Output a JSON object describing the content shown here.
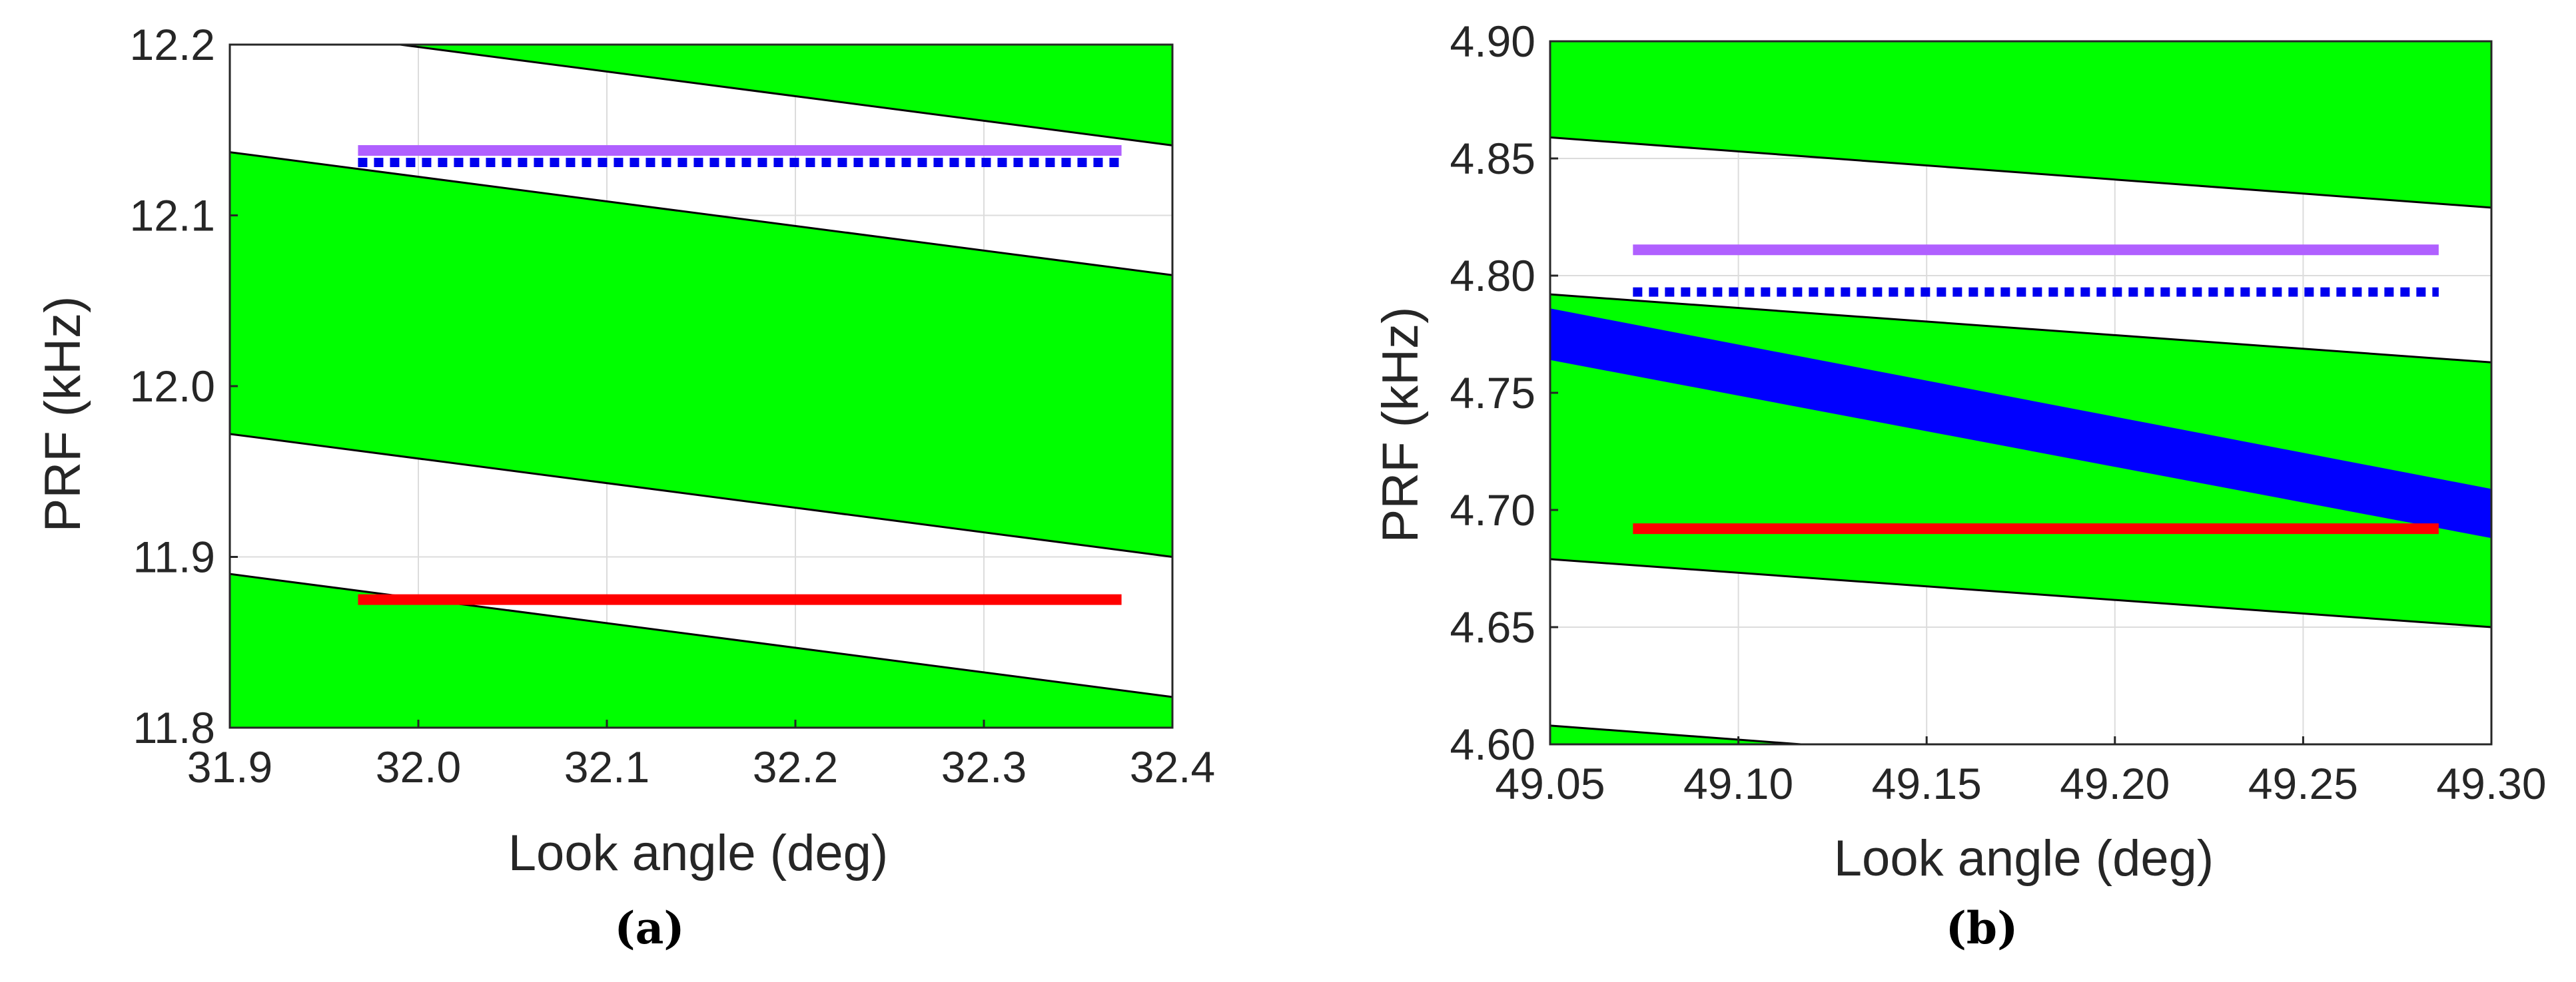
{
  "colors": {
    "feasible": "#00ff00",
    "nadir_band": "#0000ff",
    "purple_line": "#b060ff",
    "blue_dotted": "#0000ee",
    "red_line": "#ff0000",
    "boundary": "#000000",
    "grid": "#dcdcdc"
  },
  "chart_data": [
    {
      "id": "a",
      "type": "area",
      "caption": "(a)",
      "xlabel": "Look angle (deg)",
      "ylabel": "PRF (kHz)",
      "xlim": [
        31.9,
        32.4
      ],
      "ylim": [
        11.8,
        12.2
      ],
      "xticks": [
        31.9,
        32.0,
        32.1,
        32.2,
        32.3,
        32.4
      ],
      "xtick_labels": [
        "31.9",
        "32.0",
        "32.1",
        "32.2",
        "32.3",
        "32.4"
      ],
      "yticks": [
        11.8,
        11.9,
        12.0,
        12.1,
        12.2
      ],
      "ytick_labels": [
        "11.8",
        "11.9",
        "12.0",
        "12.1",
        "12.2"
      ],
      "grid": true,
      "green_bands": [
        {
          "lower": [
            [
              31.9,
              11.7
            ],
            [
              32.4,
              11.7
            ]
          ],
          "upper": [
            [
              31.9,
              11.89
            ],
            [
              32.4,
              11.818
            ]
          ]
        },
        {
          "lower": [
            [
              31.9,
              11.972
            ],
            [
              32.4,
              11.9
            ]
          ],
          "upper": [
            [
              31.9,
              12.137
            ],
            [
              32.4,
              12.065
            ]
          ]
        },
        {
          "lower": [
            [
              31.9,
              12.213
            ],
            [
              32.4,
              12.141
            ]
          ],
          "upper": [
            [
              31.9,
              12.3
            ],
            [
              32.4,
              12.3
            ]
          ]
        }
      ],
      "blue_bands": [],
      "lines": [
        {
          "name": "purple",
          "style": "solid",
          "y": 12.138,
          "x": [
            31.968,
            32.373
          ]
        },
        {
          "name": "blue-dotted",
          "style": "dotted",
          "y": 12.131,
          "x": [
            31.968,
            32.373
          ]
        },
        {
          "name": "red",
          "style": "solid",
          "y": 11.875,
          "x": [
            31.968,
            32.373
          ]
        }
      ]
    },
    {
      "id": "b",
      "type": "area",
      "caption": "(b)",
      "xlabel": "Look angle (deg)",
      "ylabel": "PRF (kHz)",
      "xlim": [
        49.05,
        49.3
      ],
      "ylim": [
        4.6,
        4.9
      ],
      "xticks": [
        49.05,
        49.1,
        49.15,
        49.2,
        49.25,
        49.3
      ],
      "xtick_labels": [
        "49.05",
        "49.10",
        "49.15",
        "49.20",
        "49.25",
        "49.30"
      ],
      "yticks": [
        4.6,
        4.65,
        4.7,
        4.75,
        4.8,
        4.85,
        4.9
      ],
      "ytick_labels": [
        "4.60",
        "4.65",
        "4.70",
        "4.75",
        "4.80",
        "4.85",
        "4.90"
      ],
      "grid": true,
      "green_bands": [
        {
          "lower": [
            [
              49.05,
              4.5
            ],
            [
              49.3,
              4.5
            ]
          ],
          "upper": [
            [
              49.05,
              4.608
            ],
            [
              49.3,
              4.578
            ]
          ]
        },
        {
          "lower": [
            [
              49.05,
              4.679
            ],
            [
              49.3,
              4.65
            ]
          ],
          "upper": [
            [
              49.05,
              4.792
            ],
            [
              49.3,
              4.763
            ]
          ]
        },
        {
          "lower": [
            [
              49.05,
              4.859
            ],
            [
              49.3,
              4.829
            ]
          ],
          "upper": [
            [
              49.05,
              5.0
            ],
            [
              49.3,
              5.0
            ]
          ]
        }
      ],
      "blue_bands": [
        {
          "lower": [
            [
              49.05,
              4.764
            ],
            [
              49.3,
              4.688
            ]
          ],
          "upper": [
            [
              49.05,
              4.786
            ],
            [
              49.3,
              4.709
            ]
          ]
        }
      ],
      "lines": [
        {
          "name": "purple",
          "style": "solid",
          "y": 4.811,
          "x": [
            49.072,
            49.286
          ]
        },
        {
          "name": "blue-dotted",
          "style": "dotted",
          "y": 4.793,
          "x": [
            49.072,
            49.286
          ]
        },
        {
          "name": "red",
          "style": "solid",
          "y": 4.692,
          "x": [
            49.072,
            49.286
          ]
        }
      ]
    }
  ]
}
